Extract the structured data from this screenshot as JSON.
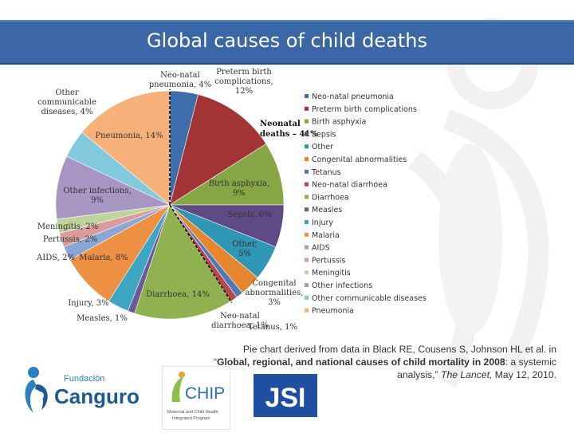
{
  "header": {
    "title": "Global causes of child deaths"
  },
  "chart_data": {
    "type": "pie",
    "title": "",
    "slices": [
      {
        "label": "Neo-natal pneumonia",
        "value": 4,
        "color": "#3e6eab",
        "data_label": "Neo-natal\npneumonia, 4%"
      },
      {
        "label": "Preterm birth complications",
        "value": 12,
        "color": "#a33436",
        "data_label": "Preterm birth\ncomplications,\n12%"
      },
      {
        "label": "Birth asphyxia",
        "value": 9,
        "color": "#86a645",
        "data_label": "Birth asphyxia,\n9%"
      },
      {
        "label": "Sepsis",
        "value": 6,
        "color": "#5f4a86",
        "data_label": "Sepsis, 6%"
      },
      {
        "label": "Other",
        "value": 5,
        "color": "#3096b5",
        "data_label": "Other,\n5%"
      },
      {
        "label": "Congenital abnormalities",
        "value": 3,
        "color": "#e6862f",
        "data_label": "Congenital\nabnormalities,\n3%"
      },
      {
        "label": "Tetanus",
        "value": 1,
        "color": "#4e79b4",
        "data_label": "Tetanus, 1%"
      },
      {
        "label": "Neo-natal diarrhoea",
        "value": 1,
        "color": "#b8474a",
        "data_label": "Neo-natal\ndiarrhoea, 1%"
      },
      {
        "label": "Diarrhoea",
        "value": 14,
        "color": "#8fb150",
        "data_label": "Diarrhoea, 14%"
      },
      {
        "label": "Measles",
        "value": 1,
        "color": "#6e5897",
        "data_label": "Measles, 1%"
      },
      {
        "label": "Injury",
        "value": 3,
        "color": "#3da6c3",
        "data_label": "Injury, 3%"
      },
      {
        "label": "Malaria",
        "value": 8,
        "color": "#ef9144",
        "data_label": "Malaria, 8%"
      },
      {
        "label": "AIDS",
        "value": 2,
        "color": "#8aa6d4",
        "data_label": "AIDS, 2%"
      },
      {
        "label": "Pertussis",
        "value": 2,
        "color": "#d99b9b",
        "data_label": "Pertussis, 2%"
      },
      {
        "label": "Meningitis",
        "value": 2,
        "color": "#bed49a",
        "data_label": "Meningitis, 2%"
      },
      {
        "label": "Other infections",
        "value": 9,
        "color": "#a795c4",
        "data_label": "Other infections,\n9%"
      },
      {
        "label": "Other communicable diseases",
        "value": 4,
        "color": "#83c9dd",
        "data_label": "Other\ncommunicable\ndiseases, 4%"
      },
      {
        "label": "Pneumonia",
        "value": 14,
        "color": "#f8b07a",
        "data_label": "Pneumonia, 14%"
      }
    ],
    "annotation": "Neonatal\ndeaths – 41%",
    "legend_position": "right"
  },
  "caption": {
    "line1": "Pie chart derived from data in Black RE, Cousens S, Johnson HL et al. in",
    "quote_open": "“",
    "bold": "Global, regional, and national causes of child mortality in 2008",
    "after_bold": ": a systemic analysis,” ",
    "journal": "The Lancet,",
    "date": " May 12, 2010."
  },
  "logos": {
    "fundacion_small": "Fundación",
    "canguro": "Canguro",
    "chip": "CHIP",
    "chip_sub": "Maternal and Child Health\nIntegrated Program",
    "jsi": "JSI"
  }
}
